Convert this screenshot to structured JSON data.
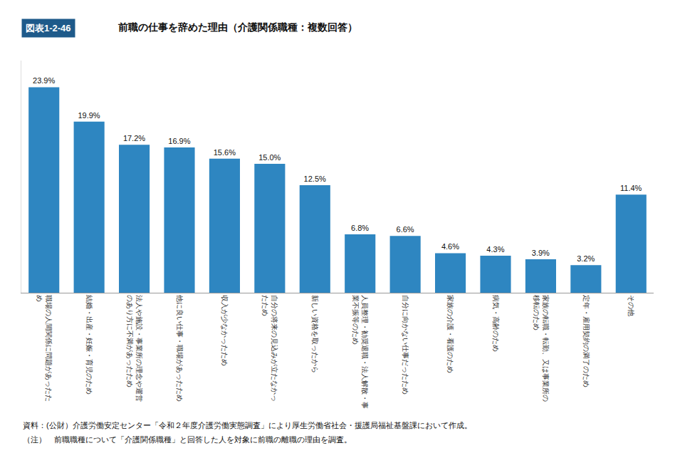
{
  "chart_data": {
    "type": "bar",
    "title": "前職の仕事を辞めた理由（介護関係職種：複数回答）",
    "annotations": [
      "図表1-2-46",
      "資料：(公財）介護労働安定センター「令和２年度介護労働実態調査」により厚生労働省社会・援護局福祉基盤課において作成。",
      "（注）　前職職種について「介護関係職種」と回答した人を対象に前職の離職の理由を調査。"
    ],
    "categories": [
      "職場の人間関係に問題があったた\nめ",
      "結婚・出産・妊娠・育児のため",
      "法人や施設・事業所の理念や運営\nのあり方に不満があったため",
      "他に良い仕事・職場があったため",
      "収入が少なかったため",
      "自分の将来の見込みが立たなかっ\nたため",
      "新しい資格を取ったから",
      "人員整理・勧奨退職・法人解散・事\n業不振等のため",
      "自分に向かない仕事だったため",
      "家族の介護・看護のため",
      "病気・高齢のため",
      "家族の転職・転勤、又は事業所の\n移転のため",
      "定年・雇用契約の満了のため",
      "その他"
    ],
    "values": [
      23.9,
      19.9,
      17.2,
      16.9,
      15.6,
      15.0,
      12.5,
      6.8,
      6.6,
      4.6,
      4.3,
      3.9,
      3.2,
      11.4
    ],
    "value_labels": [
      "23.9%",
      "19.9%",
      "17.2%",
      "16.9%",
      "15.6%",
      "15.0%",
      "12.5%",
      "6.8%",
      "6.6%",
      "4.6%",
      "4.3%",
      "3.9%",
      "3.2%",
      "11.4%"
    ],
    "color": "#2E86C1",
    "ylim": [
      0,
      27
    ],
    "data_labels": true,
    "tick_labels": "x",
    "grid": false
  }
}
